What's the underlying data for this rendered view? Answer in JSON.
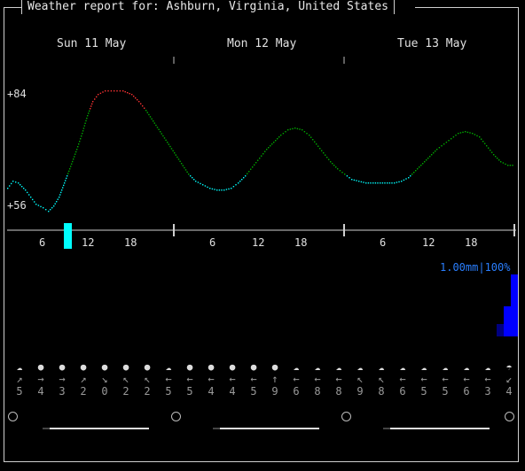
{
  "title": "Weather report for: Ashburn, Virginia, United States",
  "days": [
    "Sun 11 May",
    "Mon 12 May",
    "Tue 13 May"
  ],
  "temp": {
    "max_label": "+84",
    "min_label": "+56"
  },
  "hour_ticks": [
    "6",
    "12",
    "18"
  ],
  "precip": {
    "label": "1.00mm|100%",
    "color": "#0000ff"
  },
  "colors": {
    "cold": "#00ffff",
    "mild": "#00aa00",
    "hot": "#ff3333",
    "precip": "#0000ff",
    "precip_label": "#2a7fff"
  },
  "forecast": [
    {
      "icon": "cloud-sun-icon",
      "dir": "↗",
      "speed": "5"
    },
    {
      "icon": "sun-icon",
      "dir": "→",
      "speed": "4"
    },
    {
      "icon": "sun-icon",
      "dir": "→",
      "speed": "3"
    },
    {
      "icon": "sun-icon",
      "dir": "↗",
      "speed": "2"
    },
    {
      "icon": "sun-icon",
      "dir": "↘",
      "speed": "0"
    },
    {
      "icon": "sun-icon",
      "dir": "↖",
      "speed": "2"
    },
    {
      "icon": "sun-icon",
      "dir": "↖",
      "speed": "2"
    },
    {
      "icon": "cloud-sun-icon",
      "dir": "←",
      "speed": "5"
    },
    {
      "icon": "sun-icon",
      "dir": "←",
      "speed": "5"
    },
    {
      "icon": "sun-icon",
      "dir": "←",
      "speed": "4"
    },
    {
      "icon": "sun-icon",
      "dir": "←",
      "speed": "4"
    },
    {
      "icon": "sun-icon",
      "dir": "←",
      "speed": "5"
    },
    {
      "icon": "sun-icon",
      "dir": "↑",
      "speed": "9"
    },
    {
      "icon": "cloud-sun-icon",
      "dir": "←",
      "speed": "6"
    },
    {
      "icon": "cloud-sun-icon",
      "dir": "←",
      "speed": "8"
    },
    {
      "icon": "cloud-sun-icon",
      "dir": "←",
      "speed": "8"
    },
    {
      "icon": "cloud-sun-icon",
      "dir": "↖",
      "speed": "9"
    },
    {
      "icon": "cloud-sun-icon",
      "dir": "↖",
      "speed": "8"
    },
    {
      "icon": "cloud-sun-icon",
      "dir": "←",
      "speed": "6"
    },
    {
      "icon": "cloud-sun-icon",
      "dir": "←",
      "speed": "5"
    },
    {
      "icon": "cloud-sun-icon",
      "dir": "←",
      "speed": "5"
    },
    {
      "icon": "cloud-sun-icon",
      "dir": "←",
      "speed": "6"
    },
    {
      "icon": "cloud-sun-icon",
      "dir": "←",
      "speed": "3"
    },
    {
      "icon": "cloud-rain-icon",
      "dir": "↙",
      "speed": "4"
    }
  ]
}
